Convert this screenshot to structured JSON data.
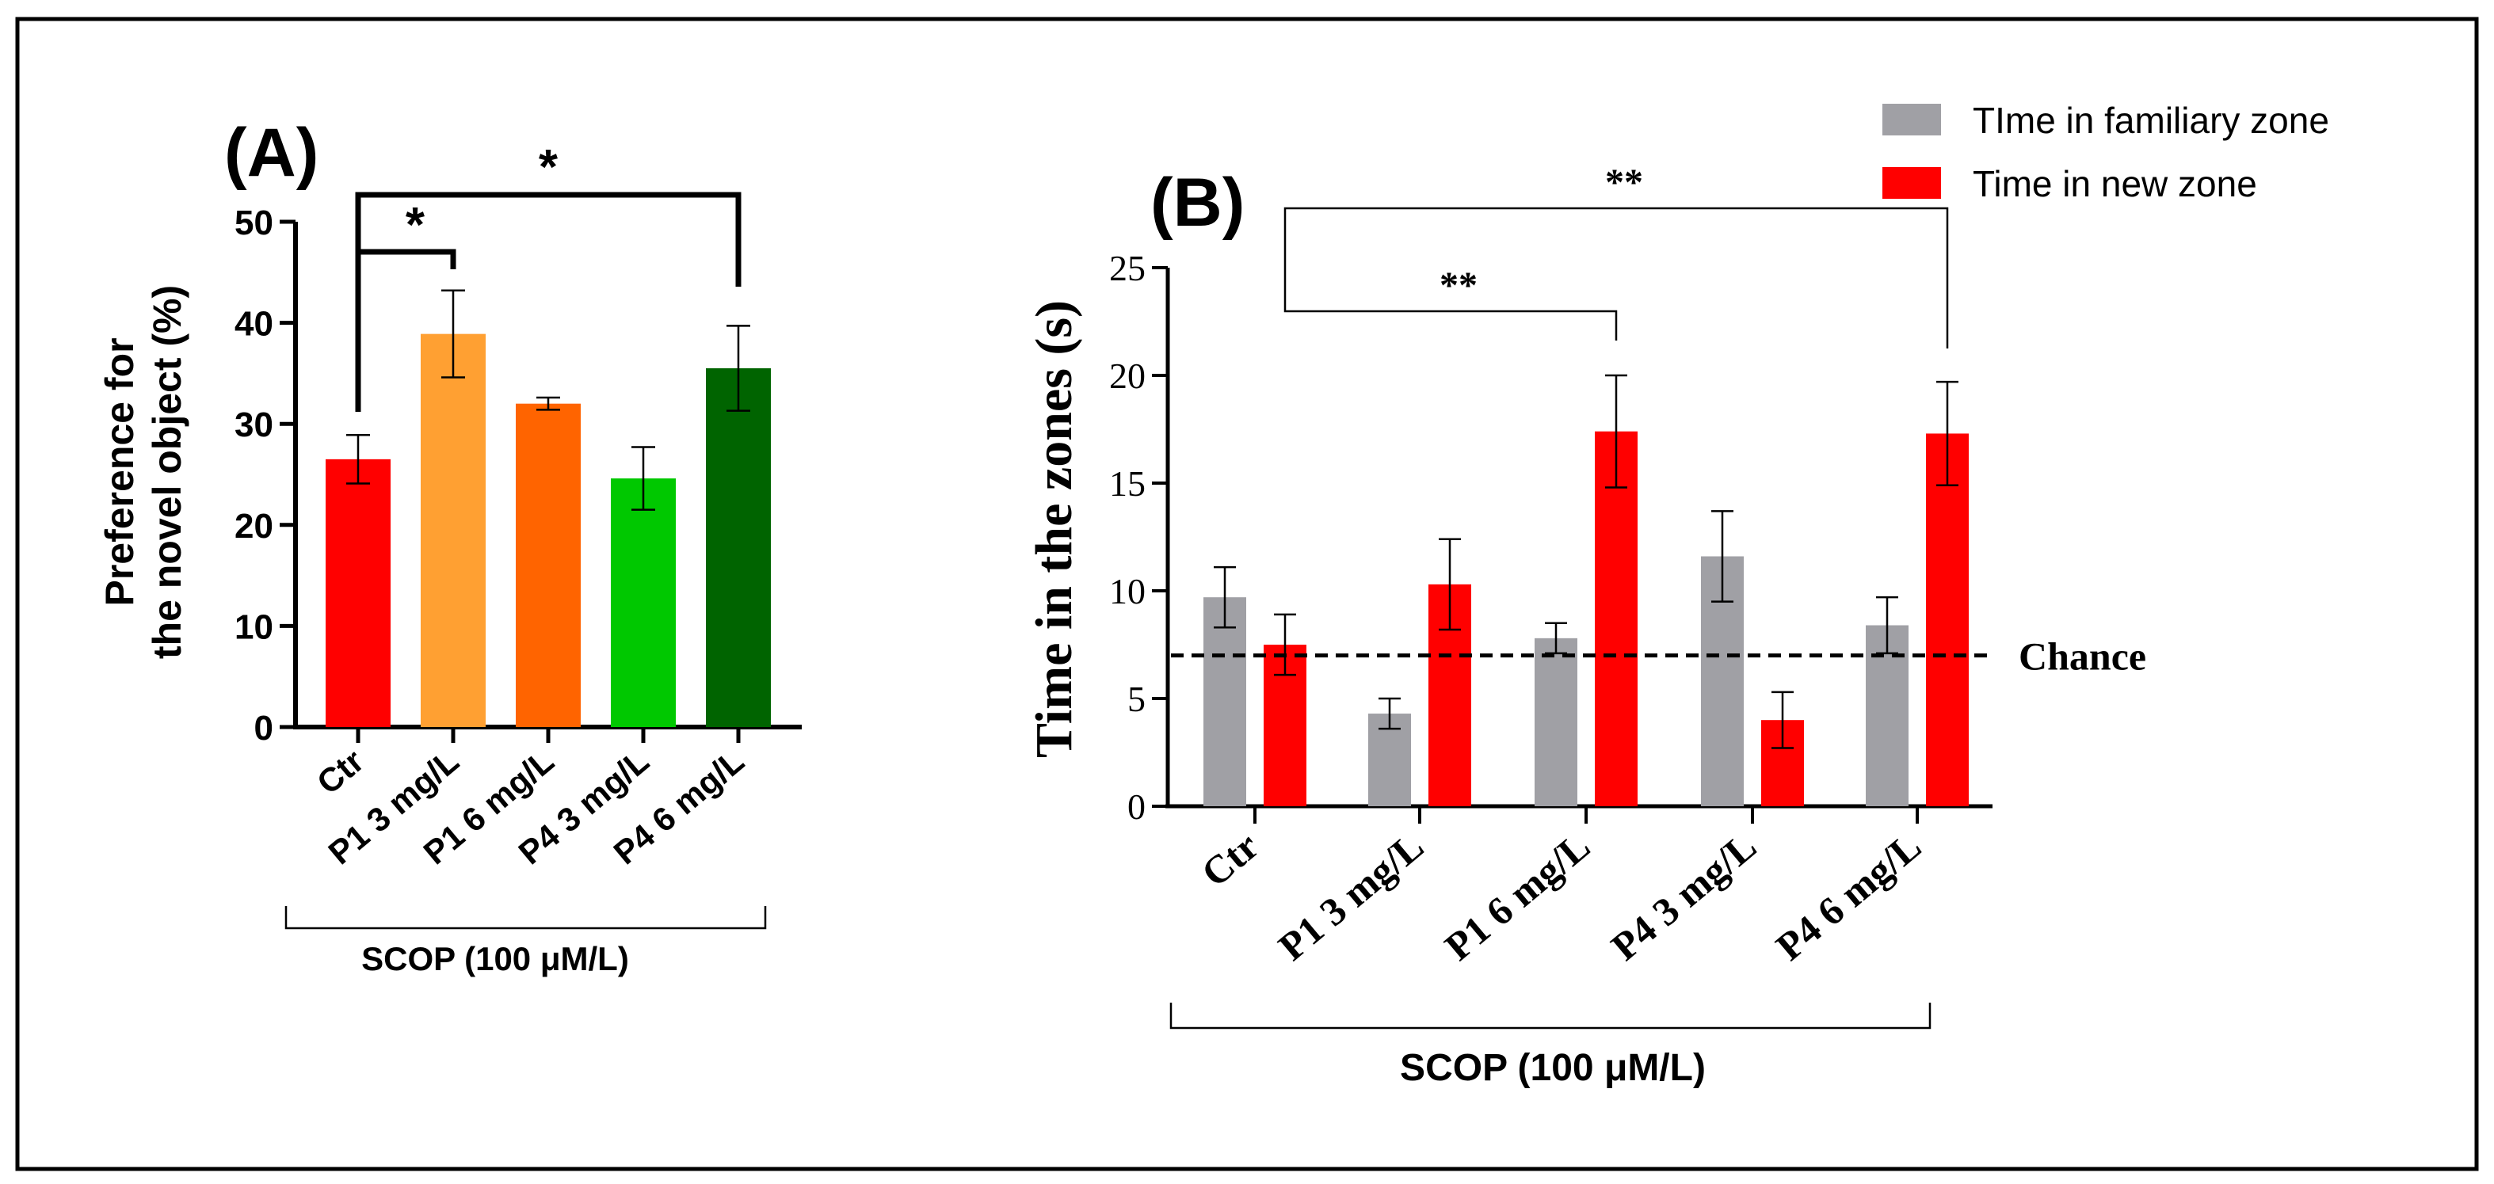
{
  "chart_data": [
    {
      "type": "bar",
      "panel_label": "(A)",
      "ylabel_line1": "Preference for",
      "ylabel_line2": "the novel object (%)",
      "ylim": [
        0,
        50
      ],
      "yticks": [
        0,
        10,
        20,
        30,
        40,
        50
      ],
      "categories": [
        "Ctr",
        "P1 3 mg/L",
        "P1 6 mg/L",
        "P4 3 mg/L",
        "P4 6 mg/L"
      ],
      "values": [
        26.5,
        38.9,
        32.0,
        24.6,
        35.5
      ],
      "errors": [
        2.4,
        4.3,
        0.6,
        3.1,
        4.2
      ],
      "colors": [
        "#ff0000",
        "#ffa032",
        "#ff6400",
        "#00c800",
        "#006400"
      ],
      "group_label": "SCOP (100 μM/L)",
      "significance": [
        {
          "from": 0,
          "to": 1,
          "label": "*"
        },
        {
          "from": 0,
          "to": 4,
          "label": "*"
        }
      ]
    },
    {
      "type": "bar",
      "panel_label": "(B)",
      "ylabel": "Time in the zones (s)",
      "ylim": [
        0,
        25
      ],
      "yticks": [
        0,
        5,
        10,
        15,
        20,
        25
      ],
      "categories": [
        "Ctr",
        "P1 3 mg/L",
        "P1 6 mg/L",
        "P4 3 mg/L",
        "P4 6 mg/L"
      ],
      "series": [
        {
          "name": "TIme in familiary zone",
          "color": "#a0a0a5",
          "values": [
            9.7,
            4.3,
            7.8,
            11.6,
            8.4
          ],
          "errors": [
            1.4,
            0.7,
            0.7,
            2.1,
            1.3
          ]
        },
        {
          "name": "Time in new zone",
          "color": "#ff0000",
          "values": [
            7.5,
            10.3,
            17.4,
            4.0,
            17.3
          ],
          "errors": [
            1.4,
            2.1,
            2.6,
            1.3,
            2.4
          ]
        }
      ],
      "chance_value": 7,
      "chance_label": "Chance",
      "group_label": "SCOP (100 μM/L)",
      "legend_position": "top-right",
      "significance": [
        {
          "from": 0,
          "to": 2,
          "label": "**"
        },
        {
          "from": 0,
          "to": 4,
          "label": "**"
        }
      ]
    }
  ]
}
